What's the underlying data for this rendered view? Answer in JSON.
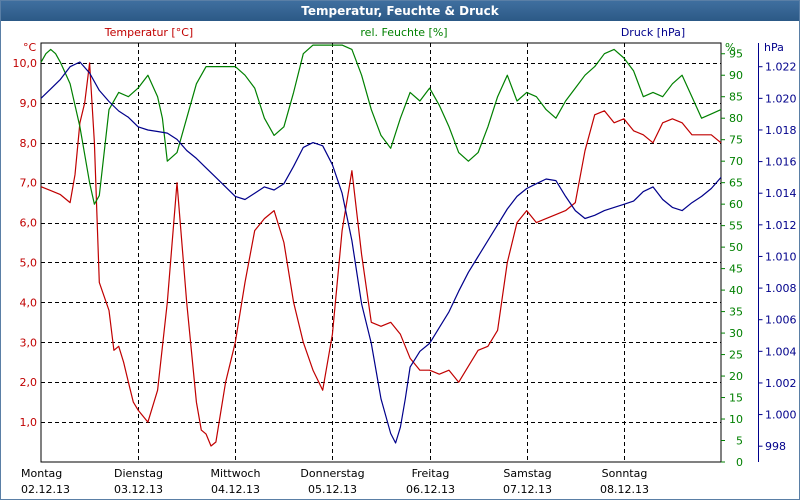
{
  "window": {
    "title": "Temperatur, Feuchte & Druck"
  },
  "chart_data": {
    "type": "line",
    "title": "Temperatur, Feuchte & Druck",
    "grid": true,
    "legend": "top, above plot area",
    "x_axis": {
      "range_days": [
        0,
        7
      ],
      "ticks": [
        {
          "day": "Montag",
          "date": "02.12.13"
        },
        {
          "day": "Dienstag",
          "date": "03.12.13"
        },
        {
          "day": "Mittwoch",
          "date": "04.12.13"
        },
        {
          "day": "Donnerstag",
          "date": "05.12.13"
        },
        {
          "day": "Freitag",
          "date": "06.12.13"
        },
        {
          "day": "Samstag",
          "date": "07.12.13"
        },
        {
          "day": "Sonntag",
          "date": "08.12.13"
        }
      ]
    },
    "axes": [
      {
        "id": "temp",
        "side": "left",
        "unit": "°C",
        "label": "Temperatur [°C]",
        "color": "#c00000",
        "range": [
          0,
          10.5
        ],
        "ticks": [
          "1,0",
          "2,0",
          "3,0",
          "4,0",
          "5,0",
          "6,0",
          "7,0",
          "8,0",
          "9,0",
          "10,0"
        ],
        "tick_values": [
          1,
          2,
          3,
          4,
          5,
          6,
          7,
          8,
          9,
          10
        ]
      },
      {
        "id": "hum",
        "side": "right-inner",
        "unit": "%",
        "label": "rel. Feuchte [%]",
        "color": "#008000",
        "range": [
          0,
          97.5
        ],
        "ticks": [
          "0",
          "5",
          "10",
          "15",
          "20",
          "25",
          "30",
          "35",
          "40",
          "45",
          "50",
          "55",
          "60",
          "65",
          "70",
          "75",
          "80",
          "85",
          "90",
          "95"
        ],
        "tick_values": [
          0,
          5,
          10,
          15,
          20,
          25,
          30,
          35,
          40,
          45,
          50,
          55,
          60,
          65,
          70,
          75,
          80,
          85,
          90,
          95
        ]
      },
      {
        "id": "press",
        "side": "right-outer",
        "unit": "hPa",
        "label": "Druck [hPa]",
        "color": "#00008b",
        "range": [
          997,
          1023.5
        ],
        "ticks": [
          "998",
          "1.000",
          "1.002",
          "1.004",
          "1.006",
          "1.008",
          "1.010",
          "1.012",
          "1.014",
          "1.016",
          "1.018",
          "1.020",
          "1.022"
        ],
        "tick_values": [
          998,
          1000,
          1002,
          1004,
          1006,
          1008,
          1010,
          1012,
          1014,
          1016,
          1018,
          1020,
          1022
        ]
      }
    ],
    "series": [
      {
        "name": "Temperatur [°C]",
        "axis": "temp",
        "color": "#c00000",
        "x": [
          0,
          0.1,
          0.2,
          0.3,
          0.35,
          0.4,
          0.45,
          0.5,
          0.55,
          0.6,
          0.7,
          0.75,
          0.8,
          0.85,
          0.9,
          0.95,
          1.0,
          1.1,
          1.2,
          1.3,
          1.4,
          1.5,
          1.6,
          1.65,
          1.7,
          1.75,
          1.8,
          1.9,
          2.0,
          2.1,
          2.2,
          2.3,
          2.4,
          2.5,
          2.6,
          2.7,
          2.8,
          2.9,
          3.0,
          3.1,
          3.2,
          3.3,
          3.4,
          3.5,
          3.6,
          3.7,
          3.8,
          3.9,
          4.0,
          4.1,
          4.2,
          4.3,
          4.4,
          4.5,
          4.6,
          4.7,
          4.8,
          4.9,
          5.0,
          5.1,
          5.2,
          5.3,
          5.4,
          5.5,
          5.6,
          5.7,
          5.8,
          5.9,
          6.0,
          6.1,
          6.2,
          6.3,
          6.4,
          6.5,
          6.6,
          6.7,
          6.8,
          6.9,
          7.0
        ],
        "values": [
          6.9,
          6.8,
          6.7,
          6.5,
          7.2,
          8.5,
          9.0,
          10.0,
          8.0,
          4.5,
          3.8,
          2.8,
          2.9,
          2.5,
          2.0,
          1.5,
          1.3,
          1.0,
          1.8,
          4.0,
          7.0,
          4.0,
          1.5,
          0.8,
          0.7,
          0.4,
          0.5,
          2.0,
          3.0,
          4.5,
          5.8,
          6.1,
          6.3,
          5.5,
          4.0,
          3.0,
          2.3,
          1.8,
          3.2,
          5.8,
          7.3,
          5.2,
          3.5,
          3.4,
          3.5,
          3.2,
          2.6,
          2.3,
          2.3,
          2.2,
          2.3,
          2.0,
          2.4,
          2.8,
          2.9,
          3.3,
          5.0,
          6.0,
          6.3,
          6.0,
          6.1,
          6.2,
          6.3,
          6.5,
          7.8,
          8.7,
          8.8,
          8.5,
          8.6,
          8.3,
          8.2,
          8.0,
          8.5,
          8.6,
          8.5,
          8.2,
          8.2,
          8.2,
          8.0
        ]
      },
      {
        "name": "rel. Feuchte [%]",
        "axis": "hum",
        "color": "#008000",
        "x": [
          0,
          0.05,
          0.1,
          0.15,
          0.2,
          0.3,
          0.4,
          0.5,
          0.55,
          0.6,
          0.7,
          0.8,
          0.9,
          1.0,
          1.1,
          1.2,
          1.25,
          1.3,
          1.4,
          1.5,
          1.6,
          1.7,
          1.8,
          1.9,
          2.0,
          2.1,
          2.2,
          2.3,
          2.4,
          2.5,
          2.6,
          2.7,
          2.8,
          2.9,
          3.0,
          3.1,
          3.2,
          3.3,
          3.4,
          3.5,
          3.6,
          3.7,
          3.8,
          3.9,
          4.0,
          4.1,
          4.2,
          4.3,
          4.4,
          4.5,
          4.6,
          4.7,
          4.8,
          4.9,
          5.0,
          5.1,
          5.2,
          5.3,
          5.4,
          5.5,
          5.6,
          5.7,
          5.8,
          5.9,
          6.0,
          6.1,
          6.2,
          6.3,
          6.4,
          6.5,
          6.6,
          6.7,
          6.8,
          6.9,
          7.0
        ],
        "values": [
          93,
          95,
          96,
          95,
          93,
          88,
          78,
          65,
          60,
          62,
          82,
          86,
          85,
          87,
          90,
          85,
          80,
          70,
          72,
          80,
          88,
          92,
          92,
          92,
          92,
          90,
          87,
          80,
          76,
          78,
          86,
          95,
          97,
          97,
          97,
          97,
          96,
          90,
          82,
          76,
          73,
          80,
          86,
          84,
          87,
          83,
          78,
          72,
          70,
          72,
          78,
          85,
          90,
          84,
          86,
          85,
          82,
          80,
          84,
          87,
          90,
          92,
          95,
          96,
          94,
          91,
          85,
          86,
          85,
          88,
          90,
          85,
          80,
          81,
          82
        ]
      },
      {
        "name": "Druck [hPa]",
        "axis": "press",
        "color": "#00008b",
        "x": [
          0,
          0.1,
          0.2,
          0.3,
          0.4,
          0.5,
          0.6,
          0.7,
          0.8,
          0.9,
          1.0,
          1.1,
          1.2,
          1.3,
          1.4,
          1.5,
          1.6,
          1.7,
          1.8,
          1.9,
          2.0,
          2.1,
          2.2,
          2.3,
          2.4,
          2.5,
          2.6,
          2.7,
          2.8,
          2.9,
          3.0,
          3.1,
          3.2,
          3.3,
          3.4,
          3.5,
          3.6,
          3.65,
          3.7,
          3.75,
          3.8,
          3.9,
          4.0,
          4.1,
          4.2,
          4.3,
          4.4,
          4.5,
          4.6,
          4.7,
          4.8,
          4.9,
          5.0,
          5.1,
          5.2,
          5.3,
          5.4,
          5.5,
          5.6,
          5.7,
          5.8,
          5.9,
          6.0,
          6.1,
          6.2,
          6.3,
          6.4,
          6.5,
          6.6,
          6.7,
          6.8,
          6.9,
          7.0
        ],
        "values": [
          1020.0,
          1020.6,
          1021.2,
          1022.0,
          1022.3,
          1021.6,
          1020.5,
          1019.8,
          1019.2,
          1018.8,
          1018.2,
          1018.0,
          1017.9,
          1017.8,
          1017.4,
          1016.7,
          1016.2,
          1015.6,
          1015.0,
          1014.4,
          1013.8,
          1013.6,
          1014.0,
          1014.4,
          1014.2,
          1014.6,
          1015.7,
          1016.9,
          1017.2,
          1017.0,
          1015.8,
          1014.0,
          1011.0,
          1007.0,
          1004.5,
          1001.0,
          998.8,
          998.2,
          999.2,
          1001.0,
          1003.0,
          1004.0,
          1004.5,
          1005.5,
          1006.5,
          1007.8,
          1009.0,
          1010.0,
          1011.0,
          1012.0,
          1013.0,
          1013.8,
          1014.3,
          1014.6,
          1014.9,
          1014.8,
          1013.8,
          1012.9,
          1012.4,
          1012.6,
          1012.9,
          1013.1,
          1013.3,
          1013.5,
          1014.1,
          1014.4,
          1013.6,
          1013.1,
          1012.9,
          1013.4,
          1013.8,
          1014.3,
          1015.0
        ]
      }
    ]
  }
}
